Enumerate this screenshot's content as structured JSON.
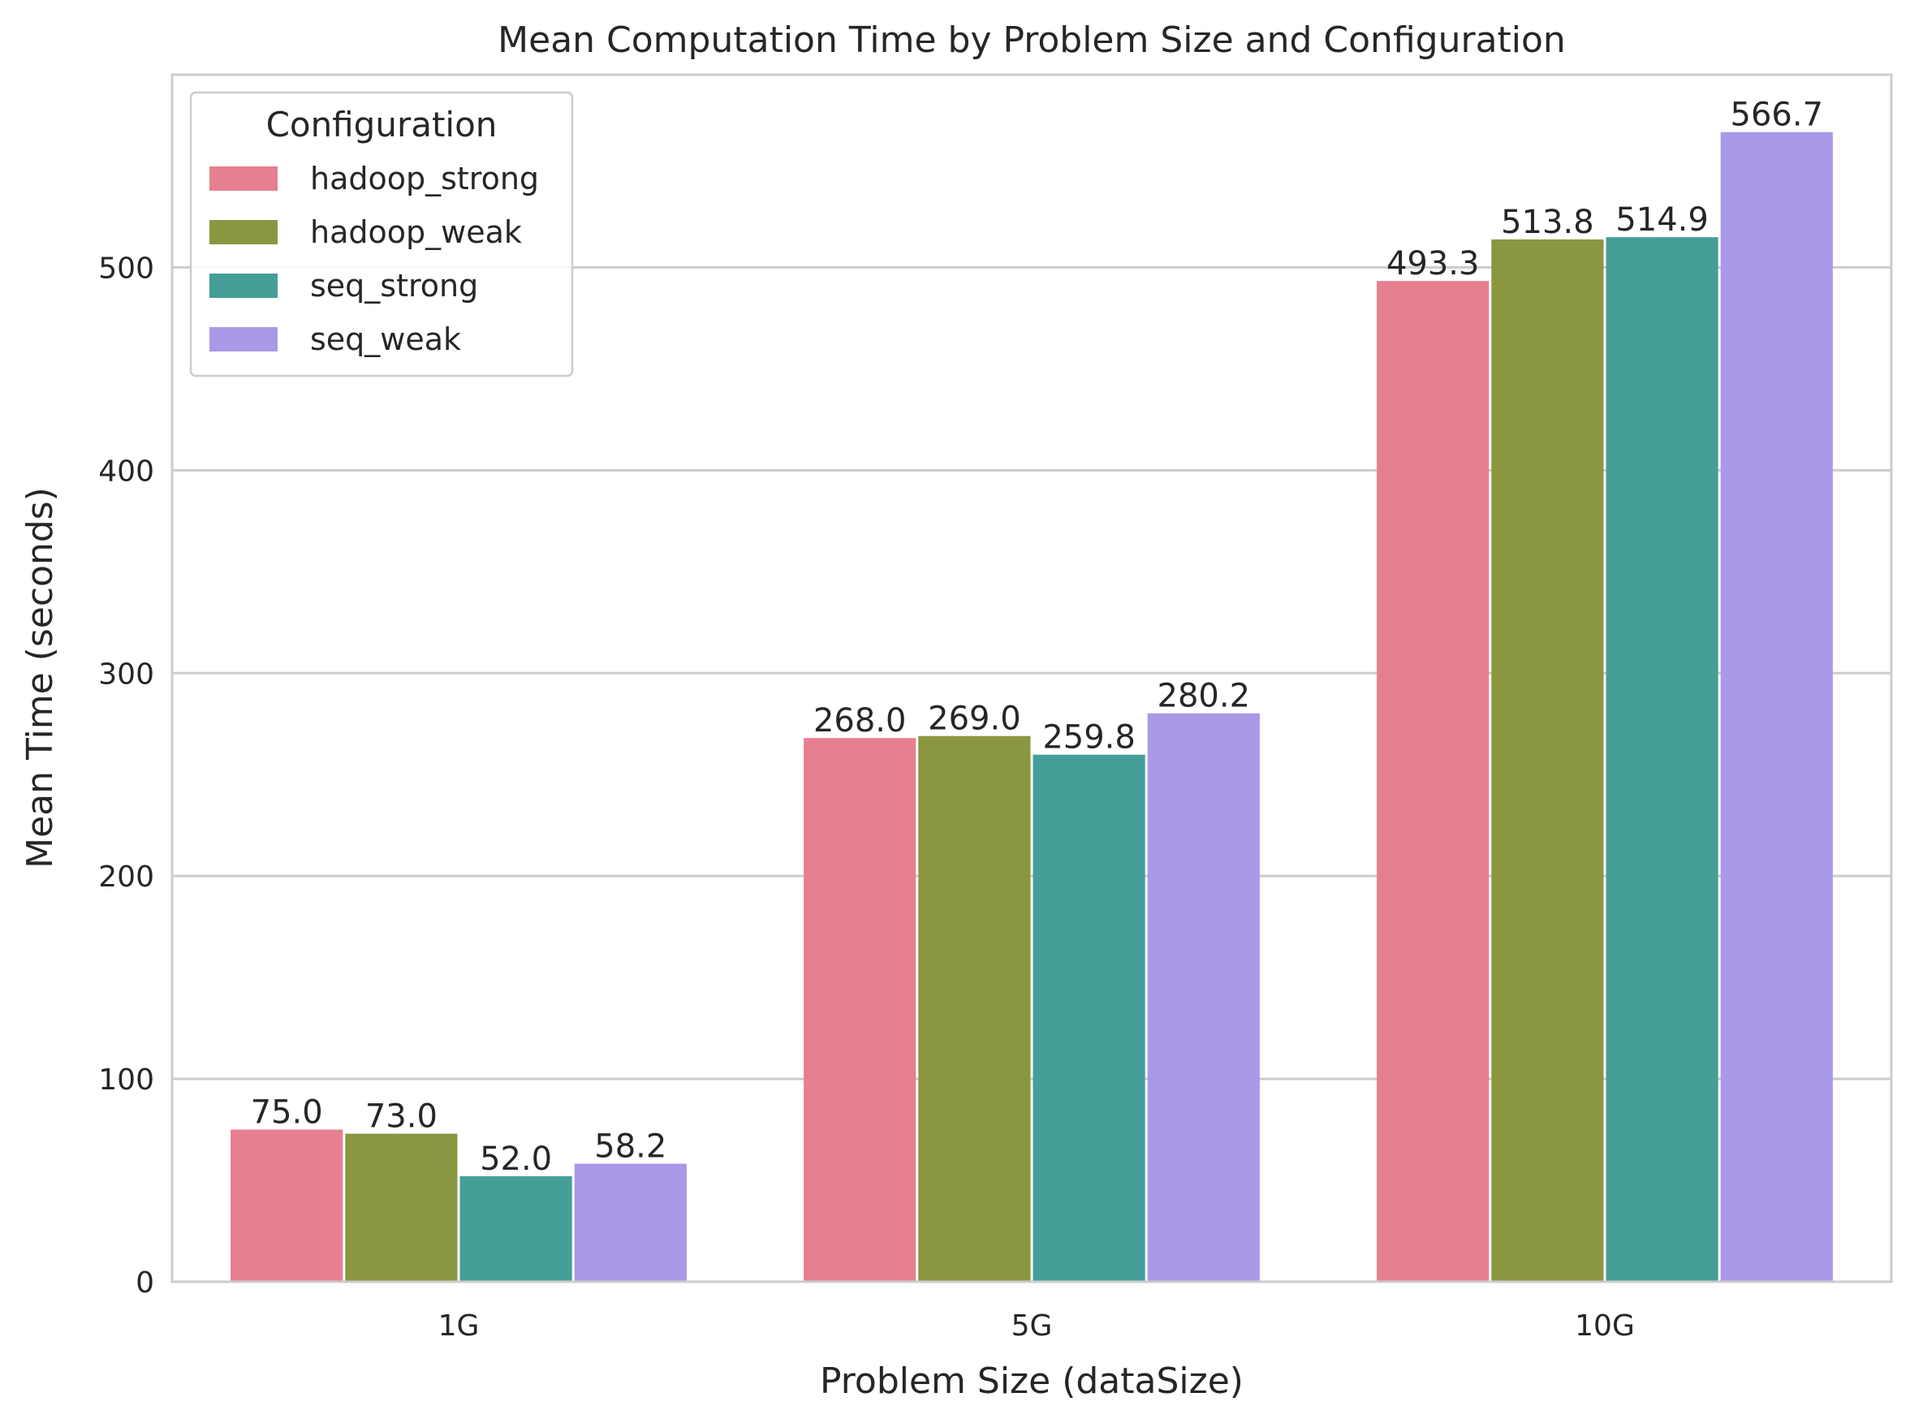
{
  "chart_data": {
    "type": "bar",
    "title": "Mean Computation Time by Problem Size and Configuration",
    "xlabel": "Problem Size (dataSize)",
    "ylabel": "Mean Time (seconds)",
    "categories": [
      "1G",
      "5G",
      "10G"
    ],
    "ylim": [
      0,
      595
    ],
    "yticks": [
      0,
      100,
      200,
      300,
      400,
      500
    ],
    "grid": "horizontal",
    "legend": {
      "title": "Configuration",
      "placement": "top-left"
    },
    "series": [
      {
        "name": "hadoop_strong",
        "color": "#e67f90",
        "values": [
          75.0,
          268.0,
          493.3
        ],
        "labels": [
          "75.0",
          "268.0",
          "493.3"
        ]
      },
      {
        "name": "hadoop_weak",
        "color": "#8b9641",
        "values": [
          73.0,
          269.0,
          513.8
        ],
        "labels": [
          "73.0",
          "269.0",
          "513.8"
        ]
      },
      {
        "name": "seq_strong",
        "color": "#459e98",
        "values": [
          52.0,
          259.8,
          514.9
        ],
        "labels": [
          "52.0",
          "259.8",
          "514.9"
        ]
      },
      {
        "name": "seq_weak",
        "color": "#aa99e6",
        "values": [
          58.2,
          280.2,
          566.7
        ],
        "labels": [
          "58.2",
          "280.2",
          "566.7"
        ]
      }
    ]
  }
}
